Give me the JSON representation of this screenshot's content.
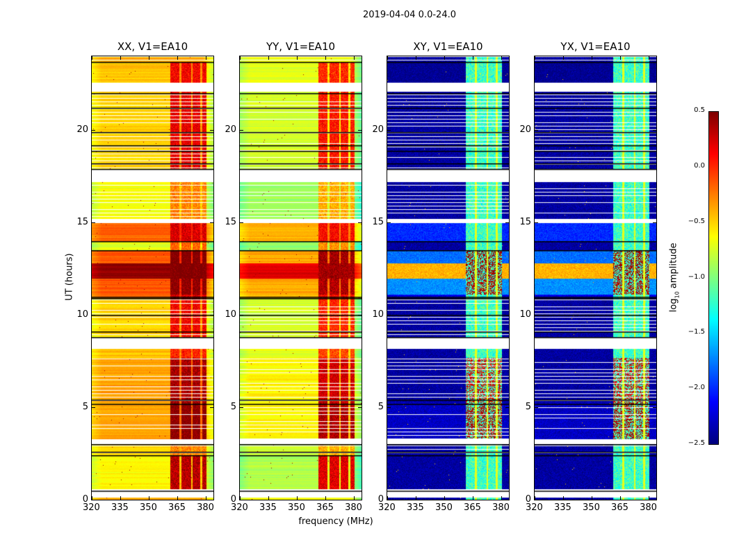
{
  "chart_data": {
    "type": "heatmap",
    "title": "2019-04-04 0.0-24.0",
    "xlabel": "frequency (MHz)",
    "ylabel": "UT (hours)",
    "xlim": [
      320,
      384
    ],
    "ylim": [
      0,
      24
    ],
    "xticks": [
      320,
      335,
      350,
      365,
      380
    ],
    "yticks": [
      0,
      5,
      10,
      15,
      20
    ],
    "panels": [
      {
        "title": "XX, V1=EA10",
        "kind": "parallel",
        "offset": 0.0
      },
      {
        "title": "YY, V1=EA10",
        "kind": "parallel",
        "offset": -0.25
      },
      {
        "title": "XY, V1=EA10",
        "kind": "cross",
        "offset": 0.0
      },
      {
        "title": "YX, V1=EA10",
        "kind": "cross",
        "offset": 0.0
      }
    ],
    "rfi_band_mhz": [
      361,
      380
    ],
    "rfi_blocks_mhz": [
      [
        361,
        366
      ],
      [
        367,
        372
      ],
      [
        373,
        377
      ],
      [
        378,
        380
      ]
    ],
    "time_segments": [
      {
        "ut": [
          0.0,
          0.15
        ],
        "level": -0.4,
        "cross_level": -2.4
      },
      {
        "ut": [
          0.15,
          0.6
        ],
        "flagged": true
      },
      {
        "ut": [
          0.6,
          2.4
        ],
        "level": -0.6,
        "cross_level": -2.4,
        "hot": 0.3
      },
      {
        "ut": [
          2.4,
          3.0
        ],
        "level": -0.5,
        "cross_level": -2.4,
        "hot": -0.3,
        "sparse": true
      },
      {
        "ut": [
          3.0,
          3.3
        ],
        "flagged": true
      },
      {
        "ut": [
          3.3,
          5.3
        ],
        "level": -0.35,
        "cross_level": -2.3,
        "hot": 0.45,
        "sparse": true
      },
      {
        "ut": [
          5.3,
          7.7
        ],
        "level": -0.35,
        "cross_level": -2.4,
        "hot": 0.35,
        "sparse": true
      },
      {
        "ut": [
          7.7,
          8.2
        ],
        "level": -0.45,
        "cross_level": -2.4,
        "hot": 0.0
      },
      {
        "ut": [
          8.2,
          8.8
        ],
        "flagged": true
      },
      {
        "ut": [
          8.8,
          10.9
        ],
        "level": -0.5,
        "cross_level": -2.4,
        "hot": 0.1,
        "sparse": true
      },
      {
        "ut": [
          10.9,
          11.1
        ],
        "level": -0.2,
        "cross_level": -2.2,
        "hot": 0.2
      },
      {
        "ut": [
          11.1,
          12.0
        ],
        "level": -0.12,
        "cross_level": -1.7,
        "hot": 0.45
      },
      {
        "ut": [
          12.0,
          12.8
        ],
        "level": 0.45,
        "cross_level": -0.4,
        "hot": 0.5
      },
      {
        "ut": [
          12.8,
          13.5
        ],
        "level": -0.12,
        "cross_level": -1.8,
        "hot": 0.5
      },
      {
        "ut": [
          13.5,
          14.0
        ],
        "level": -0.7,
        "cross_level": -2.4,
        "hot": -0.2
      },
      {
        "ut": [
          14.0,
          15.0
        ],
        "level": -0.15,
        "cross_level": -2.0,
        "hot": 0.2
      },
      {
        "ut": [
          15.0,
          15.2
        ],
        "flagged": true
      },
      {
        "ut": [
          15.2,
          17.2
        ],
        "level": -0.65,
        "cross_level": -2.4,
        "hot": -0.3,
        "sparse": true
      },
      {
        "ut": [
          17.2,
          17.9
        ],
        "flagged": true
      },
      {
        "ut": [
          17.9,
          22.1
        ],
        "level": -0.5,
        "cross_level": -2.4,
        "hot": 0.15,
        "sparse": true
      },
      {
        "ut": [
          22.1,
          22.6
        ],
        "flagged": true
      },
      {
        "ut": [
          22.6,
          23.7
        ],
        "level": -0.45,
        "cross_level": -2.45,
        "hot": 0.1
      },
      {
        "ut": [
          23.7,
          24.0
        ],
        "level": -0.4,
        "cross_level": -2.4,
        "sparse": true
      }
    ],
    "flag_lines_ut": [
      0.5,
      2.4,
      2.6,
      3.0,
      5.2,
      5.4,
      8.8,
      9.1,
      10.0,
      10.9,
      11.0,
      13.5,
      14.0,
      17.9,
      18.2,
      18.9,
      19.2,
      19.9,
      21.2,
      22.0,
      23.7
    ],
    "colorbar": {
      "label_main": "log",
      "label_sub": "10",
      "label_rest": " amplitude",
      "range": [
        -2.5,
        0.5
      ],
      "ticks": [
        "0.5",
        "0.0",
        "−0.5",
        "−1.0",
        "−1.5",
        "−2.0",
        "−2.5"
      ],
      "tick_values": [
        0.5,
        0.0,
        -0.5,
        -1.0,
        -1.5,
        -2.0,
        -2.5
      ],
      "colormap": "jet"
    }
  }
}
